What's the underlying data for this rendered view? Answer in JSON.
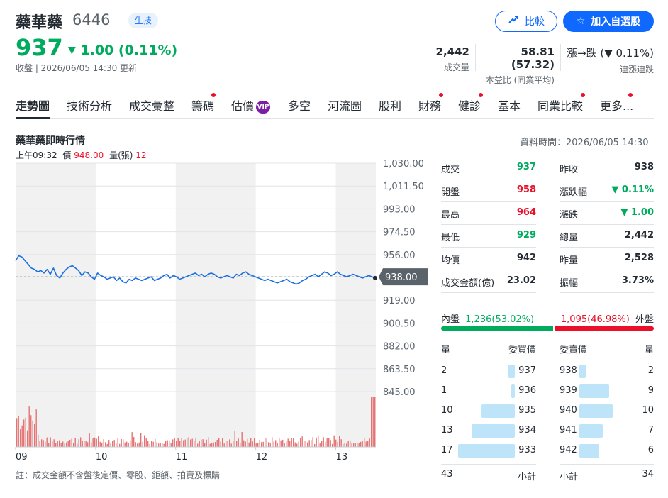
{
  "header": {
    "name": "藥華藥",
    "code": "6446",
    "sector_badge": "生技",
    "compare_label": "比較",
    "watchlist_label": "加入自選股",
    "price": "937",
    "change": "1.00 (0.11%)",
    "change_arrow": "▼",
    "timeline": "收盤 | 2026/06/05 14:30 更新",
    "stats": [
      {
        "value": "2,442",
        "label": "成交量"
      },
      {
        "value": "58.81 (57.32)",
        "label": "本益比 (同業平均)"
      },
      {
        "value": "漲→跌 (▼ 0.11%)",
        "label": "連漲連跌"
      }
    ],
    "colors": {
      "up": "#eb0f29",
      "down": "#00ab5e",
      "accent": "#0f69ff"
    }
  },
  "tabs": [
    {
      "label": "走勢圖",
      "active": true,
      "dot": false
    },
    {
      "label": "技術分析",
      "dot": false
    },
    {
      "label": "成交彙整",
      "dot": false
    },
    {
      "label": "籌碼",
      "dot": true
    },
    {
      "label": "估價",
      "dot": false,
      "vip": "VIP"
    },
    {
      "label": "多空",
      "dot": false
    },
    {
      "label": "河流圖",
      "dot": false
    },
    {
      "label": "股利",
      "dot": false
    },
    {
      "label": "財務",
      "dot": true
    },
    {
      "label": "健診",
      "dot": true
    },
    {
      "label": "基本",
      "dot": false
    },
    {
      "label": "同業比較",
      "dot": true
    },
    {
      "label": "更多...",
      "dot": true
    }
  ],
  "section": {
    "title": "藥華藥即時行情",
    "data_time": "資料時間：2026/06/05 14:30",
    "cursor": {
      "time": "上午09:32",
      "price_label": "價",
      "price": "948.00",
      "vol_label": "量(張)",
      "vol": "12"
    }
  },
  "chart_data": {
    "type": "line",
    "x_tick_labels": [
      "09",
      "10",
      "11",
      "12",
      "13"
    ],
    "y_tick_labels": [
      "1,030.00",
      "1,011.50",
      "993.00",
      "974.50",
      "956.00",
      "938.00",
      "919.00",
      "900.50",
      "882.00",
      "863.50",
      "845.00"
    ],
    "ylim": [
      845,
      1030
    ],
    "reference_price": 938.0,
    "current_label": "938.00",
    "price_series": [
      951,
      955,
      954,
      951,
      948,
      945,
      944,
      942,
      943,
      941,
      944,
      940,
      945,
      939,
      937,
      941,
      944,
      946,
      947,
      945,
      943,
      939,
      942,
      941,
      938,
      936,
      941,
      939,
      938,
      936,
      937,
      938,
      935,
      937,
      934,
      933,
      936,
      935,
      937,
      936,
      935,
      936,
      937,
      938,
      935,
      936,
      937,
      939,
      940,
      937,
      939,
      938,
      936,
      937,
      938,
      939,
      940,
      941,
      939,
      940,
      938,
      940,
      941,
      940,
      938,
      937,
      938,
      939,
      938,
      937,
      940,
      939,
      941,
      942,
      940,
      939,
      938,
      937,
      936,
      935,
      936,
      935,
      934,
      933,
      934,
      935,
      936,
      934,
      933,
      932,
      933,
      935,
      936,
      938,
      939,
      940,
      938,
      940,
      942,
      941,
      939,
      940,
      942,
      940,
      939,
      938,
      939,
      940,
      939,
      938,
      937,
      938,
      939,
      938,
      937
    ]
  },
  "quote_left": [
    {
      "label": "成交",
      "value": "937",
      "color": "green"
    },
    {
      "label": "開盤",
      "value": "958",
      "color": "red"
    },
    {
      "label": "最高",
      "value": "964",
      "color": "red"
    },
    {
      "label": "最低",
      "value": "929",
      "color": "green"
    },
    {
      "label": "均價",
      "value": "942",
      "color": "black"
    },
    {
      "label": "成交金額(億)",
      "value": "23.02",
      "color": "black"
    }
  ],
  "quote_right": [
    {
      "label": "昨收",
      "value": "938",
      "color": "black"
    },
    {
      "label": "漲跌幅",
      "value": "▼ 0.11%",
      "color": "green"
    },
    {
      "label": "漲跌",
      "value": "▼ 1.00",
      "color": "green"
    },
    {
      "label": "總量",
      "value": "2,442",
      "color": "black"
    },
    {
      "label": "昨量",
      "value": "2,528",
      "color": "black"
    },
    {
      "label": "振幅",
      "value": "3.73%",
      "color": "black"
    }
  ],
  "inner_outer": {
    "inner_label": "內盤",
    "inner_value": "1,236(53.02%)",
    "inner_pct": 53.02,
    "outer_value": "1,095(46.98%)",
    "outer_label": "外盤"
  },
  "order_book": {
    "headers": {
      "bid_qty": "量",
      "bid_price": "委買價",
      "ask_price": "委賣價",
      "ask_qty": "量"
    },
    "bids": [
      {
        "qty": "2",
        "price": "937",
        "n": 2
      },
      {
        "qty": "1",
        "price": "936",
        "n": 1
      },
      {
        "qty": "10",
        "price": "935",
        "n": 10
      },
      {
        "qty": "13",
        "price": "934",
        "n": 13
      },
      {
        "qty": "17",
        "price": "933",
        "n": 17
      }
    ],
    "asks": [
      {
        "price": "938",
        "qty": "2",
        "n": 2
      },
      {
        "price": "939",
        "qty": "9",
        "n": 9
      },
      {
        "price": "940",
        "qty": "10",
        "n": 10
      },
      {
        "price": "941",
        "qty": "7",
        "n": 7
      },
      {
        "price": "942",
        "qty": "6",
        "n": 6
      }
    ],
    "bid_total": "43",
    "subtotal_label": "小計",
    "ask_total": "34"
  },
  "footnote": "註：成交金額不含盤後定價、零股、鉅額、拍賣及標購"
}
